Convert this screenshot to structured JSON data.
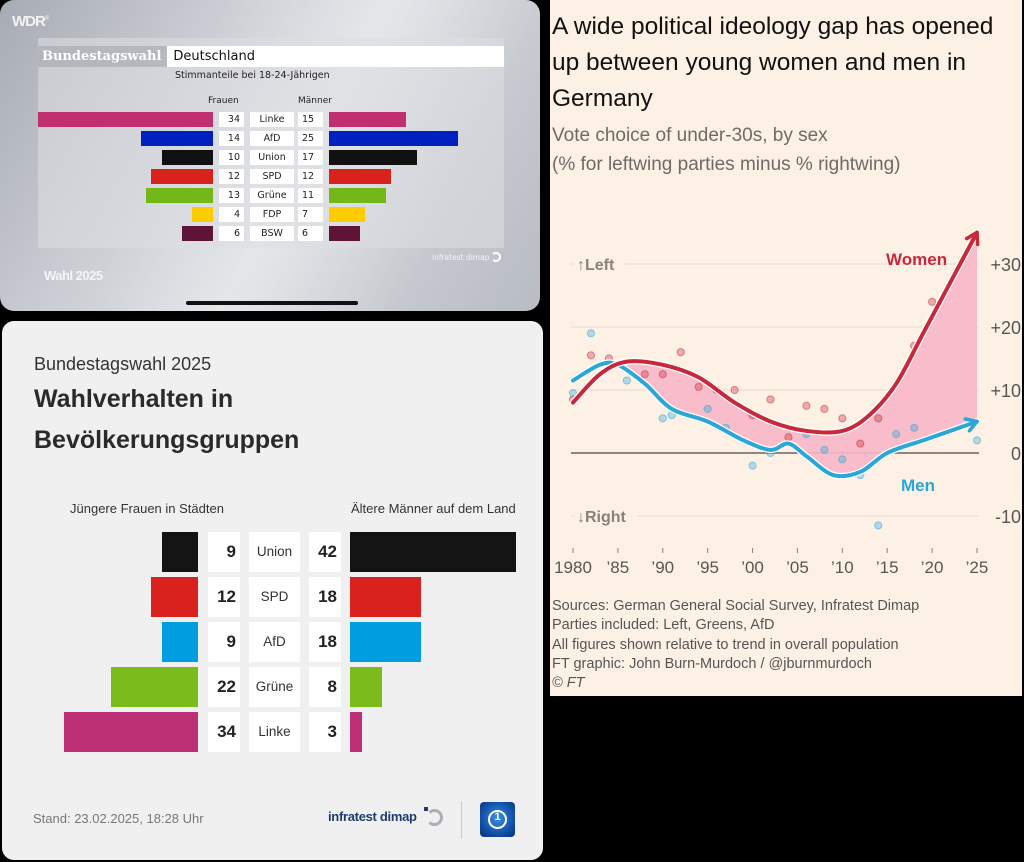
{
  "wdr": {
    "logo": "WDR",
    "headline_left": "Bundestagswahl",
    "headline_right": "Deutschland",
    "subtitle": "Stimmanteile bei 18-24-Jährigen",
    "col_female": "Frauen",
    "col_male": "Männer",
    "footer_brand": "Wahl 2025",
    "source": "infratest dimap"
  },
  "tagesschau": {
    "kicker": "Bundestagswahl 2025",
    "title_line1": "Wahlverhalten in",
    "title_line2": "Bevölkerungsgruppen",
    "label_female": "Jüngere Frauen in Städten",
    "label_male": "Ältere Männer auf dem Land",
    "stand": "Stand:  23.02.2025, 18:28 Uhr",
    "source": "infratest dimap"
  },
  "ft": {
    "title": "A wide political ideology gap has opened up between young women and men in Germany",
    "subtitle_line1": "Vote choice of under-30s, by sex",
    "subtitle_line2": "(% for leftwing parties minus % rightwing)",
    "notes": [
      "Sources: German General Social Survey, Infratest Dimap",
      "Parties included: Left, Greens, AfD",
      "All figures shown relative to trend in overall population",
      "FT graphic: John Burn-Murdoch / @jburnmurdoch"
    ],
    "copyright": "© FT"
  },
  "chart_data": [
    {
      "type": "bar",
      "title": "Bundestagswahl Deutschland — Stimmanteile bei 18-24-Jährigen",
      "layout": "butterfly",
      "categories": [
        "Linke",
        "AfD",
        "Union",
        "SPD",
        "Grüne",
        "FDP",
        "BSW"
      ],
      "colors": [
        "#c0306f",
        "#0020c0",
        "#111111",
        "#d8231d",
        "#74b71b",
        "#ffcc00",
        "#5f1437"
      ],
      "series": [
        {
          "name": "Frauen",
          "values": [
            34,
            14,
            10,
            12,
            13,
            4,
            6
          ]
        },
        {
          "name": "Männer",
          "values": [
            15,
            25,
            17,
            12,
            11,
            7,
            6
          ]
        }
      ],
      "unit": "%"
    },
    {
      "type": "bar",
      "title": "Wahlverhalten in Bevölkerungsgruppen",
      "layout": "butterfly",
      "categories": [
        "Union",
        "SPD",
        "AfD",
        "Grüne",
        "Linke"
      ],
      "colors": [
        "#141414",
        "#d9211d",
        "#009ee0",
        "#7bbb1c",
        "#be3075"
      ],
      "series": [
        {
          "name": "Jüngere Frauen in Städten",
          "values": [
            9,
            12,
            9,
            22,
            34
          ]
        },
        {
          "name": "Ältere Männer auf dem Land",
          "values": [
            42,
            18,
            18,
            8,
            3
          ]
        }
      ],
      "unit": "%"
    },
    {
      "type": "line",
      "title": "A wide political ideology gap has opened up between young women and men in Germany",
      "subtitle": "Vote choice of under-30s, by sex (% for leftwing parties minus % rightwing)",
      "xlabel": "",
      "ylabel": "",
      "x_ticks": [
        1980,
        1985,
        1990,
        1995,
        2000,
        2005,
        2010,
        2015,
        2020,
        2025
      ],
      "x_tick_labels": [
        "1980",
        "’85",
        "’90",
        "’95",
        "’00",
        "’05",
        "’10",
        "’15",
        "’20",
        "’25"
      ],
      "y_ticks": [
        30,
        20,
        10,
        0,
        -10
      ],
      "y_tick_labels": [
        "+30",
        "+20",
        "+10",
        "0",
        "-10"
      ],
      "xlim": [
        1980,
        2025
      ],
      "ylim": [
        -13,
        37
      ],
      "grid": true,
      "y_axis_side": "right",
      "annotations": [
        "↑Left",
        "↓Right",
        "Women",
        "Men"
      ],
      "series": [
        {
          "name": "Women",
          "color": "#c8283a",
          "trend": {
            "x": [
              1980,
              1983,
              1986,
              1990,
              1994,
              1998,
              2002,
              2006,
              2010,
              2013,
              2016,
              2019,
              2022,
              2025
            ],
            "y": [
              8,
              12.5,
              14.5,
              14,
              12,
              8,
              5,
              3.5,
              3.5,
              6,
              11,
              19,
              27,
              35
            ]
          },
          "points": {
            "x": [
              1980,
              1982,
              1984,
              1988,
              1990,
              1992,
              1994,
              1996,
              1998,
              2000,
              2002,
              2004,
              2006,
              2008,
              2010,
              2012,
              2014,
              2018,
              2020
            ],
            "y": [
              8.5,
              15.5,
              15,
              12.5,
              12.5,
              16,
              10.5,
              10,
              10,
              6,
              8.5,
              2.5,
              7.5,
              7,
              5.5,
              1.5,
              5.5,
              17,
              24
            ]
          }
        },
        {
          "name": "Men",
          "color": "#2aa7d8",
          "trend": {
            "x": [
              1980,
              1983,
              1985,
              1988,
              1991,
              1995,
              1999,
              2002,
              2004,
              2006,
              2009,
              2012,
              2015,
              2019,
              2022,
              2025
            ],
            "y": [
              11.5,
              14,
              14,
              11,
              7,
              5,
              2,
              0.5,
              1.5,
              -0.5,
              -3.5,
              -3,
              0,
              2,
              3.5,
              5
            ]
          },
          "points": {
            "x": [
              1980,
              1982,
              1986,
              1990,
              1991,
              1995,
              1997,
              2000,
              2002,
              2006,
              2008,
              2010,
              2012,
              2014,
              2016,
              2018,
              2025
            ],
            "y": [
              9.5,
              19,
              11.5,
              5.5,
              6,
              7,
              4,
              -2,
              0,
              3,
              0.5,
              -1,
              -3.5,
              -11.5,
              3,
              4,
              2
            ]
          }
        }
      ]
    }
  ]
}
